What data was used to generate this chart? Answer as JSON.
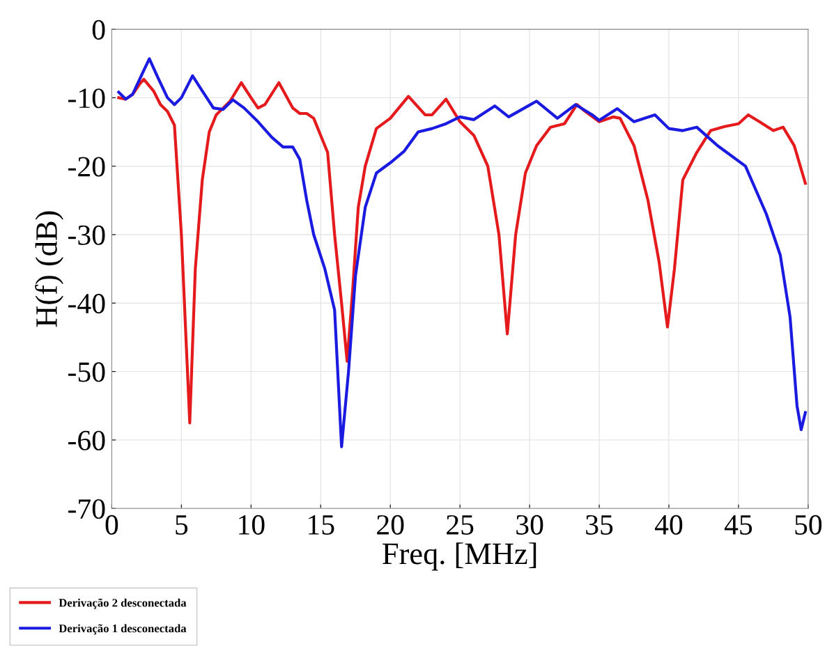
{
  "chart_data": {
    "type": "line",
    "xlabel": "Freq. [MHz]",
    "ylabel": "H(f) (dB)",
    "xlim": [
      0,
      50
    ],
    "ylim": [
      -70,
      0
    ],
    "xticks": [
      0,
      5,
      10,
      15,
      20,
      25,
      30,
      35,
      40,
      45,
      50
    ],
    "yticks": [
      -70,
      -60,
      -50,
      -40,
      -30,
      -20,
      -10,
      0
    ],
    "grid": true,
    "legend": "bottom left",
    "line_style": "solid",
    "marker": "none",
    "series": [
      {
        "name": "Derivação 2 desconectada",
        "color": "#e41a1c",
        "x": [
          0.5,
          1,
          1.5,
          2,
          2.3,
          3,
          3.5,
          4,
          4.5,
          5,
          5.6,
          6,
          6.5,
          7,
          7.5,
          8,
          8.5,
          9.3,
          10,
          10.5,
          11,
          12,
          13,
          13.5,
          14,
          14.5,
          15,
          15.5,
          16,
          16.5,
          16.9,
          17.3,
          17.7,
          18.2,
          19,
          20,
          21.3,
          22.5,
          23,
          24,
          25,
          26,
          27,
          27.8,
          28.4,
          29,
          29.7,
          30.5,
          31.5,
          32.5,
          33.4,
          34,
          35,
          36,
          36.5,
          37.5,
          38.5,
          39.3,
          39.9,
          40.4,
          41,
          42,
          43,
          44,
          45,
          45.7,
          46.5,
          47.5,
          48.2,
          49,
          49.8
        ],
        "values": [
          -10,
          -10.2,
          -9.5,
          -8,
          -7.3,
          -9,
          -11,
          -12,
          -14,
          -30,
          -57.5,
          -35,
          -22,
          -15,
          -12.5,
          -11.5,
          -10.5,
          -7.8,
          -10,
          -11.5,
          -11,
          -7.8,
          -11.5,
          -12.3,
          -12.3,
          -13,
          -15.5,
          -18,
          -30,
          -40,
          -48.5,
          -38,
          -26,
          -20,
          -14.5,
          -13,
          -9.8,
          -12.5,
          -12.5,
          -10.2,
          -13.5,
          -15.5,
          -20,
          -30,
          -44.5,
          -30,
          -21,
          -17,
          -14.3,
          -13.8,
          -11,
          -12,
          -13.5,
          -12.8,
          -13,
          -17,
          -25,
          -34,
          -43.5,
          -35,
          -22,
          -18,
          -14.8,
          -14.2,
          -13.8,
          -12.5,
          -13.5,
          -14.8,
          -14.3,
          -17,
          -22.5
        ]
      },
      {
        "name": "Derivação 1 desconectada",
        "color": "#1a1ae0",
        "x": [
          0.5,
          1,
          1.5,
          2.3,
          2.7,
          3.3,
          4,
          4.5,
          5,
          5.8,
          6.5,
          7.3,
          8,
          8.7,
          9.5,
          10.5,
          11.5,
          12.3,
          13,
          13.5,
          14,
          14.5,
          15.3,
          16,
          16.5,
          17,
          17.5,
          18.2,
          19,
          20,
          21,
          22,
          23,
          24,
          25,
          26,
          27.5,
          28.5,
          30.5,
          32,
          33.3,
          34.5,
          35,
          36.3,
          37.5,
          39,
          40,
          41,
          42,
          43.5,
          45.5,
          47,
          48,
          48.7,
          49.2,
          49.5,
          49.8
        ],
        "values": [
          -9.2,
          -10.2,
          -9.5,
          -6,
          -4.3,
          -7,
          -10,
          -11,
          -10,
          -6.8,
          -9,
          -11.5,
          -11.7,
          -10.3,
          -11.5,
          -13.5,
          -15.8,
          -17.2,
          -17.2,
          -19,
          -25,
          -30,
          -35,
          -41,
          -61,
          -50,
          -36,
          -26,
          -21,
          -19.5,
          -17.8,
          -15,
          -14.5,
          -13.8,
          -12.8,
          -13.2,
          -11.2,
          -12.8,
          -10.5,
          -13,
          -11,
          -12.5,
          -13.3,
          -11.6,
          -13.5,
          -12.5,
          -14.5,
          -14.8,
          -14.3,
          -17,
          -20,
          -27,
          -33,
          -42,
          -55,
          -58.5,
          -56
        ]
      }
    ]
  }
}
